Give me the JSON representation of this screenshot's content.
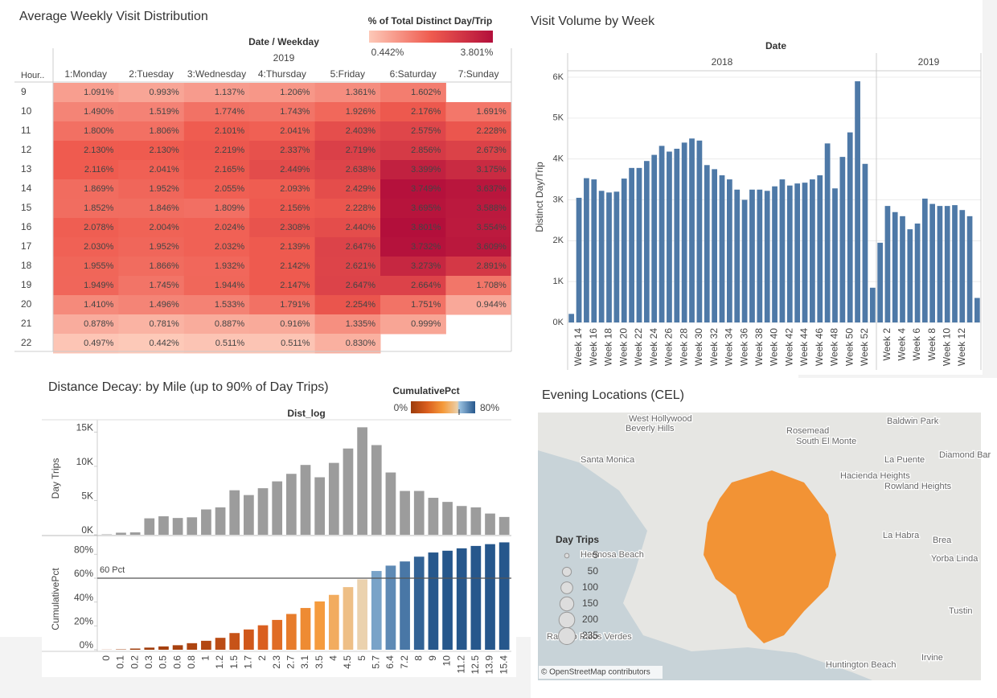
{
  "chart_data": [
    {
      "type": "heatmap",
      "title": "Average Weekly Visit Distribution",
      "column_header": "Date / Weekday",
      "column_group": "2019",
      "row_header": "Hour..",
      "columns": [
        "1:Monday",
        "2:Tuesday",
        "3:Wednesday",
        "4:Thursday",
        "5:Friday",
        "6:Saturday",
        "7:Sunday"
      ],
      "rows": [
        9,
        10,
        11,
        12,
        13,
        14,
        15,
        16,
        17,
        18,
        19,
        20,
        21,
        22
      ],
      "values": [
        [
          1.091,
          0.993,
          1.137,
          1.206,
          1.361,
          1.602,
          null
        ],
        [
          1.49,
          1.519,
          1.774,
          1.743,
          1.926,
          2.176,
          1.691
        ],
        [
          1.8,
          1.806,
          2.101,
          2.041,
          2.403,
          2.575,
          2.228
        ],
        [
          2.13,
          2.13,
          2.219,
          2.337,
          2.719,
          2.856,
          2.673
        ],
        [
          2.116,
          2.041,
          2.165,
          2.449,
          2.638,
          3.399,
          3.175
        ],
        [
          1.869,
          1.952,
          2.055,
          2.093,
          2.429,
          3.749,
          3.637
        ],
        [
          1.852,
          1.846,
          1.809,
          2.156,
          2.228,
          3.695,
          3.588
        ],
        [
          2.078,
          2.004,
          2.024,
          2.308,
          2.44,
          3.801,
          3.554
        ],
        [
          2.03,
          1.952,
          2.032,
          2.139,
          2.647,
          3.732,
          3.609
        ],
        [
          1.955,
          1.866,
          1.932,
          2.142,
          2.621,
          3.273,
          2.891
        ],
        [
          1.949,
          1.745,
          1.944,
          2.147,
          2.647,
          2.664,
          1.708
        ],
        [
          1.41,
          1.496,
          1.533,
          1.791,
          2.254,
          1.751,
          0.944
        ],
        [
          0.878,
          0.781,
          0.887,
          0.916,
          1.335,
          0.999,
          null
        ],
        [
          0.497,
          0.442,
          0.511,
          0.511,
          0.83,
          null,
          null
        ]
      ],
      "value_labels": [
        [
          "1.091%",
          "0.993%",
          "1.137%",
          "1.206%",
          "1.361%",
          "1.602%",
          null
        ],
        [
          "1.490%",
          "1.519%",
          "1.774%",
          "1.743%",
          "1.926%",
          "2.176%",
          "1.691%"
        ],
        [
          "1.800%",
          "1.806%",
          "2.101%",
          "2.041%",
          "2.403%",
          "2.575%",
          "2.228%"
        ],
        [
          "2.130%",
          "2.130%",
          "2.219%",
          "2.337%",
          "2.719%",
          "2.856%",
          "2.673%"
        ],
        [
          "2.116%",
          "2.041%",
          "2.165%",
          "2.449%",
          "2.638%",
          "3.399%",
          "3.175%"
        ],
        [
          "1.869%",
          "1.952%",
          "2.055%",
          "2.093%",
          "2.429%",
          "3.749%",
          "3.637%"
        ],
        [
          "1.852%",
          "1.846%",
          "1.809%",
          "2.156%",
          "2.228%",
          "3.695%",
          "3.588%"
        ],
        [
          "2.078%",
          "2.004%",
          "2.024%",
          "2.308%",
          "2.440%",
          "3.801%",
          "3.554%"
        ],
        [
          "2.030%",
          "1.952%",
          "2.032%",
          "2.139%",
          "2.647%",
          "3.732%",
          "3.609%"
        ],
        [
          "1.955%",
          "1.866%",
          "1.932%",
          "2.142%",
          "2.621%",
          "3.273%",
          "2.891%"
        ],
        [
          "1.949%",
          "1.745%",
          "1.944%",
          "2.147%",
          "2.647%",
          "2.664%",
          "1.708%"
        ],
        [
          "1.410%",
          "1.496%",
          "1.533%",
          "1.791%",
          "2.254%",
          "1.751%",
          "0.944%"
        ],
        [
          "0.878%",
          "0.781%",
          "0.887%",
          "0.916%",
          "1.335%",
          "0.999%",
          null
        ],
        [
          "0.497%",
          "0.442%",
          "0.511%",
          "0.511%",
          "0.830%",
          null,
          null
        ]
      ],
      "color_scale": {
        "title": "% of Total Distinct Day/Trip",
        "ticks": [
          {
            "value": 0.442,
            "label": "0.442%"
          },
          {
            "value": 3.801,
            "label": "3.801%"
          }
        ],
        "colors": [
          "#fdc9b8",
          "#ef5b4f",
          "#b30f3b"
        ]
      }
    },
    {
      "type": "bar",
      "title": "Visit Volume by Week",
      "column_header": "Date",
      "y_label": "Distinct Day/Trip",
      "color": "#4e79a7",
      "grid": true,
      "ylim": [
        0,
        6000
      ],
      "yticks": [
        {
          "value": 0,
          "label": "0K"
        },
        {
          "value": 1000,
          "label": "1K"
        },
        {
          "value": 2000,
          "label": "2K"
        },
        {
          "value": 3000,
          "label": "3K"
        },
        {
          "value": 4000,
          "label": "4K"
        },
        {
          "value": 5000,
          "label": "5K"
        },
        {
          "value": 6000,
          "label": "6K"
        }
      ],
      "panels": [
        {
          "label": "2018",
          "categories": [
            null,
            "Week 14",
            null,
            "Week 16",
            null,
            "Week 18",
            null,
            "Week 20",
            null,
            "Week 22",
            null,
            "Week 24",
            null,
            "Week 26",
            null,
            "Week 28",
            null,
            "Week 30",
            null,
            "Week 32",
            null,
            "Week 34",
            null,
            "Week 36",
            null,
            "Week 38",
            null,
            "Week 40",
            null,
            "Week 42",
            null,
            "Week 44",
            null,
            "Week 46",
            null,
            "Week 48",
            null,
            "Week 50",
            null,
            "Week 52",
            null
          ],
          "values": [
            210,
            3050,
            3530,
            3500,
            3220,
            3180,
            3200,
            3520,
            3780,
            3780,
            3950,
            4100,
            4320,
            4180,
            4250,
            4400,
            4500,
            4450,
            3850,
            3750,
            3600,
            3500,
            3250,
            3000,
            3250,
            3250,
            3220,
            3330,
            3500,
            3350,
            3400,
            3420,
            3500,
            3600,
            4380,
            3280,
            4050,
            4650,
            5900,
            3880,
            850
          ]
        },
        {
          "label": "2019",
          "categories": [
            null,
            "Week 2",
            null,
            "Week 4",
            null,
            "Week 6",
            null,
            "Week 8",
            null,
            "Week 10",
            null,
            "Week 12",
            null,
            null
          ],
          "values": [
            1950,
            2850,
            2700,
            2600,
            2280,
            2420,
            3030,
            2900,
            2850,
            2850,
            2870,
            2750,
            2600,
            600
          ]
        }
      ]
    },
    {
      "type": "bar",
      "title": "Distance Decay: by Mile  (up to 90% of Day Trips)",
      "x_label": "Dist_log",
      "categories": [
        "0",
        "0.1",
        "0.2",
        "0.3",
        "0.5",
        "0.6",
        "0.8",
        "1",
        "1.2",
        "1.5",
        "1.7",
        "2",
        "2.3",
        "2.7",
        "3.1",
        "3.5",
        "4",
        "4.5",
        "5",
        "5.7",
        "6.4",
        "7.2",
        "8",
        "9",
        "10",
        "11.2",
        "12.5",
        "13.9",
        "15.4"
      ],
      "panels": [
        {
          "y_label": "Day Trips",
          "color": "#9c9c9c",
          "ylim": [
            0,
            16800
          ],
          "yticks": [
            {
              "value": 0,
              "label": "0K"
            },
            {
              "value": 5000,
              "label": "5K"
            },
            {
              "value": 10000,
              "label": "10K"
            },
            {
              "value": 15000,
              "label": "15K"
            }
          ],
          "values": [
            50,
            300,
            350,
            2400,
            2700,
            2450,
            2550,
            3700,
            4000,
            6500,
            5800,
            6800,
            7800,
            8900,
            10200,
            8400,
            10500,
            12600,
            15700,
            13100,
            9100,
            6400,
            6400,
            5400,
            4800,
            4200,
            4000,
            3100,
            2600
          ]
        },
        {
          "y_label": "CumulativePct",
          "ylim": [
            0,
            93
          ],
          "yticks": [
            {
              "value": 0,
              "label": "0%"
            },
            {
              "value": 20,
              "label": "20%"
            },
            {
              "value": 40,
              "label": "40%"
            },
            {
              "value": 60,
              "label": "60%"
            },
            {
              "value": 80,
              "label": "80%"
            }
          ],
          "values": [
            0.1,
            0.3,
            1,
            1.8,
            2.8,
            3.8,
            5.5,
            7.5,
            10,
            14,
            17,
            20.5,
            25,
            30,
            35,
            40.5,
            46,
            52.5,
            59,
            66,
            70.5,
            74,
            78,
            81.5,
            83,
            85,
            87,
            88.5,
            90
          ],
          "reference_line": {
            "value": 60,
            "label": "60 Pct"
          },
          "color_scale": {
            "title": "CumulativePct",
            "ticks": [
              {
                "value": 0,
                "label": "0%"
              },
              {
                "value": 80,
                "label": "80%"
              }
            ],
            "colors_below": [
              "#9c3b0b",
              "#d95d1e",
              "#f59a3a",
              "#ead5b4"
            ],
            "colors_above": [
              "#9cc3e2",
              "#26578c"
            ]
          }
        }
      ]
    },
    {
      "type": "map",
      "title": "Evening Locations (CEL)",
      "attribution": "© OpenStreetMap contributors",
      "places": [
        "West Hollywood",
        "Beverly Hills",
        "Santa Monica",
        "Rosemead",
        "South El Monte",
        "Baldwin Park",
        "La Puente",
        "Diamond Bar",
        "Hacienda Heights",
        "Rowland Heights",
        "La Habra",
        "Brea",
        "Yorba Linda",
        "Hermosa Beach",
        "Rancho Palos Verdes",
        "Huntington Beach",
        "Irvine",
        "Tustin"
      ],
      "size_legend": {
        "title": "Day Trips",
        "values": [
          5,
          50,
          100,
          150,
          200,
          235
        ]
      },
      "color": "#f28e2b"
    }
  ]
}
